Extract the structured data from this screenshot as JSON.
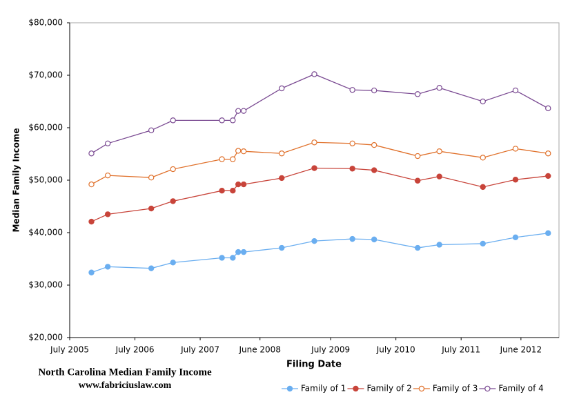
{
  "chart_data": {
    "type": "line",
    "title": "North Carolina Median Family Income",
    "subtitle": "www.fabriciuslaw.com",
    "x_label": "Filing Date",
    "y_label": "Median Family Income",
    "x": [
      "2005-11",
      "2006-02",
      "2006-10",
      "2007-02",
      "2007-11",
      "2008-01",
      "2008-02",
      "2008-03",
      "2008-10",
      "2009-04",
      "2009-11",
      "2010-03",
      "2010-11",
      "2011-03",
      "2011-11",
      "2012-05",
      "2012-11"
    ],
    "xlim": [
      "2005-07",
      "2013-01"
    ],
    "xticks": [
      {
        "value": "2005-07",
        "label": "July 2005"
      },
      {
        "value": "2006-07",
        "label": "July 2006"
      },
      {
        "value": "2007-07",
        "label": "July 2007"
      },
      {
        "value": "2008-06",
        "label": "June 2008"
      },
      {
        "value": "2009-07",
        "label": "July 2009"
      },
      {
        "value": "2010-07",
        "label": "July 2010"
      },
      {
        "value": "2011-07",
        "label": "July 2011"
      },
      {
        "value": "2012-06",
        "label": "June 2012"
      }
    ],
    "ylim": [
      20000,
      80000
    ],
    "yticks": [
      {
        "value": 20000,
        "label": "$20,000"
      },
      {
        "value": 30000,
        "label": "$30,000"
      },
      {
        "value": 40000,
        "label": "$40,000"
      },
      {
        "value": 50000,
        "label": "$50,000"
      },
      {
        "value": 60000,
        "label": "$60,000"
      },
      {
        "value": 70000,
        "label": "$70,000"
      },
      {
        "value": 80000,
        "label": "$80,000"
      }
    ],
    "grid": false,
    "legend": "bottom",
    "series": [
      {
        "name": "Family of 1",
        "color": "#6aaef0",
        "marker": "filled",
        "values": [
          32400,
          33500,
          33200,
          34300,
          35200,
          35200,
          36300,
          36300,
          37100,
          38400,
          38800,
          38700,
          37100,
          37700,
          37900,
          39100,
          39900
        ]
      },
      {
        "name": "Family of 2",
        "color": "#c8443a",
        "marker": "filled",
        "values": [
          42100,
          43500,
          44600,
          46000,
          48000,
          48000,
          49200,
          49200,
          50400,
          52300,
          52200,
          51900,
          49900,
          50700,
          48700,
          50100,
          50800
        ]
      },
      {
        "name": "Family of 3",
        "color": "#e0702a",
        "marker": "hollow",
        "values": [
          49200,
          50900,
          50500,
          52100,
          54000,
          54000,
          55600,
          55500,
          55100,
          57200,
          57000,
          56700,
          54600,
          55500,
          54300,
          56000,
          55100
        ]
      },
      {
        "name": "Family of 4",
        "color": "#7a4a92",
        "marker": "hollow",
        "values": [
          55100,
          57000,
          59500,
          61400,
          61400,
          61400,
          63200,
          63200,
          67500,
          70200,
          67200,
          67100,
          66400,
          67600,
          65000,
          67100,
          63700
        ]
      }
    ]
  }
}
